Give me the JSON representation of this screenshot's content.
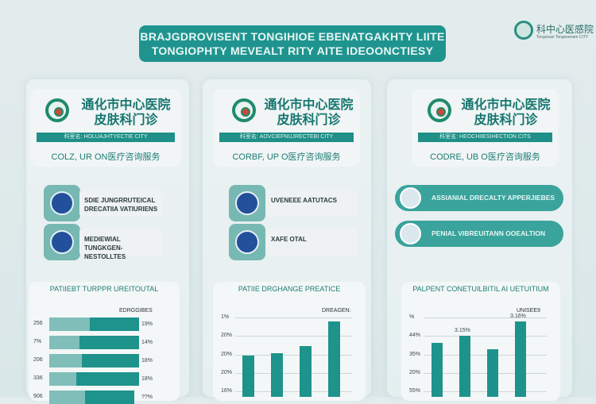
{
  "banner": {
    "line1": "BRAJGDROVISENT TONGIHIOE EBENATGAKHTY LIITE",
    "line2": "TONGIOPHTY MEVEALT RITY AITE IDEOONCTIESY"
  },
  "top_logo": {
    "text": "科中心医感院",
    "subtext": "Tongxisan Tongosenam CITY"
  },
  "colors": {
    "teal": "#1f948f",
    "light_teal": "#78b8b3",
    "background": "#dfe9ea"
  },
  "columns": [
    {
      "hospital": "通化市中心医院",
      "department": "皮肤科门诊",
      "strip": "科室名: HOLUAJHTYECTIE CITY",
      "subtitle": "COLZ, UR ON医疗咨询服务",
      "items": [
        {
          "label": "SDIE JUNGRRUTEICAL DRECATIIA VATIURIENS",
          "icon": "tree-icon"
        },
        {
          "label": "MEDIEWIAL TUNGKGEN-NESTOLLTES",
          "icon": "medical-figure-icon"
        }
      ]
    },
    {
      "hospital": "通化市中心医院",
      "department": "皮肤科门诊",
      "strip": "科室名: AOVCIEFNUJRECTEBI CITY",
      "subtitle": "CORBF, UP O医疗咨询服务",
      "items": [
        {
          "label": "UVENEEE AATUTACS",
          "icon": "building-seal-icon"
        },
        {
          "label": "XAFE OTAL",
          "icon": "wings-emblem-icon"
        }
      ]
    },
    {
      "hospital": "通化市中心医院",
      "department": "皮肤科门诊",
      "strip": "科室名: HEOCHIIESIHECTION CITS",
      "subtitle": "CODRE, UB O医疗咨询服务",
      "items": [
        {
          "label": "ASSIANIAL DRECALTY APPERJIEBES",
          "icon": "building-seal-icon"
        },
        {
          "label": "PENIAL VIBREUITANN OOEALTION",
          "icon": "doctor-icon"
        }
      ]
    }
  ],
  "chart_data": [
    {
      "type": "bar",
      "orientation": "horizontal",
      "title": "PATIIEBT TURPPR UREITOUTAL",
      "legend": "EDRGGIBES",
      "legend_position": "top-right",
      "categories": [
        "256",
        "7%",
        "206",
        "336",
        "906"
      ],
      "right_labels": [
        "19%",
        "14%",
        "18%",
        "18%",
        "??%"
      ],
      "series": [
        {
          "values": [
            45,
            34,
            36,
            30,
            40
          ]
        },
        {
          "values": [
            55,
            66,
            64,
            70,
            55
          ]
        }
      ],
      "xlim": [
        0,
        100
      ]
    },
    {
      "type": "bar",
      "title": "PATIIE DRGHANGE PREATICE",
      "legend": "DREAGEN:",
      "legend_position": "top-right",
      "tick_labels": [
        "1%",
        "20%",
        "20%",
        "20%",
        "16%"
      ],
      "values": [
        47,
        50,
        58,
        86
      ],
      "ylim": [
        0,
        100
      ],
      "grid": true
    },
    {
      "type": "bar",
      "title": "PALPENT CONETUILBITIL AI UETUITIUM",
      "legend": "UNISEE9",
      "legend_position": "top-right",
      "tick_labels": [
        "%",
        "44%",
        "35%",
        "20%",
        "55%"
      ],
      "values": [
        62,
        70,
        55,
        86
      ],
      "data_labels": [
        "",
        "3.15%",
        "",
        "3.16%"
      ],
      "ylim": [
        0,
        100
      ],
      "grid": true
    }
  ]
}
